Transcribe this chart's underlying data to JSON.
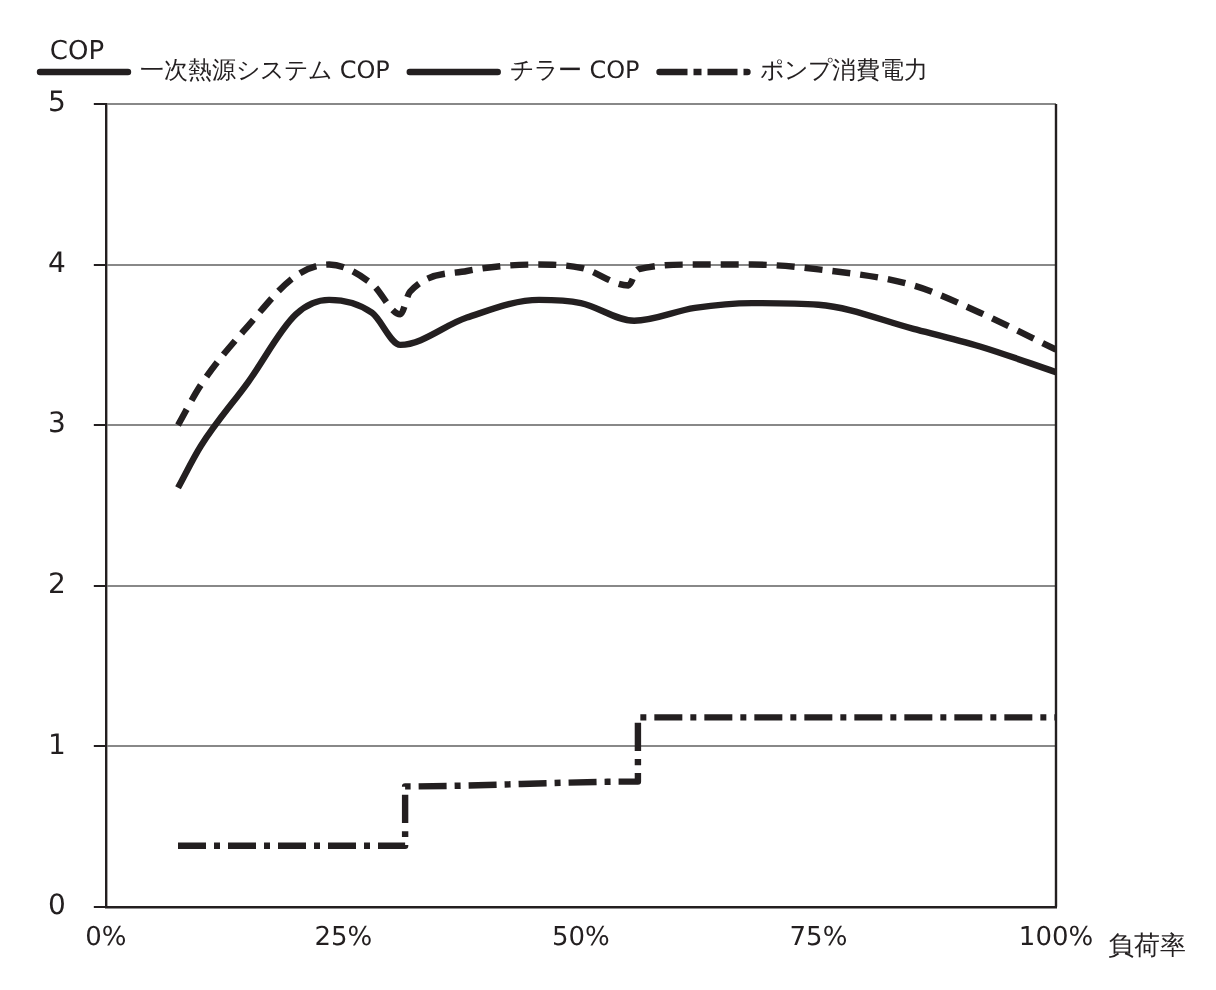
{
  "chart_data": {
    "type": "line",
    "xlabel": "負荷率",
    "ylabel": "COP",
    "xlim": [
      0,
      100
    ],
    "ylim": [
      0,
      5
    ],
    "xticks": [
      {
        "value": 0,
        "label": "0%"
      },
      {
        "value": 25,
        "label": "25%"
      },
      {
        "value": 50,
        "label": "50%"
      },
      {
        "value": 75,
        "label": "75%"
      },
      {
        "value": 100,
        "label": "100%"
      }
    ],
    "yticks": [
      0,
      1,
      2,
      3,
      4,
      5
    ],
    "grid": "y",
    "legend": "top",
    "marker": "none",
    "series": [
      {
        "name": "一次熱源システム COP",
        "color": "#231f20",
        "line_style": "solid",
        "x": [
          7.6,
          10,
          15,
          20,
          23.5,
          28,
          31,
          38,
          45.6,
          50,
          55.6,
          62,
          68,
          75,
          85,
          92,
          100
        ],
        "values": [
          2.61,
          2.87,
          3.27,
          3.69,
          3.78,
          3.7,
          3.5,
          3.67,
          3.78,
          3.76,
          3.65,
          3.73,
          3.76,
          3.75,
          3.6,
          3.49,
          3.33
        ]
      },
      {
        "name": "チラー COP",
        "color": "#231f20",
        "line_style": "dashed",
        "x": [
          7.6,
          10,
          15,
          20,
          23.5,
          28,
          31,
          32,
          38,
          45,
          50,
          55,
          56,
          62,
          68,
          75,
          85,
          92,
          100
        ],
        "values": [
          3.0,
          3.25,
          3.62,
          3.93,
          4.0,
          3.88,
          3.69,
          3.83,
          3.96,
          4.0,
          3.98,
          3.87,
          3.97,
          4.0,
          4.0,
          3.97,
          3.87,
          3.7,
          3.47
        ]
      },
      {
        "name": "ポンプ消費電力",
        "color": "#231f20",
        "line_style": "dashdot",
        "x": [
          7.6,
          31.5,
          31.5,
          56,
          56,
          100
        ],
        "values": [
          0.38,
          0.38,
          0.75,
          0.78,
          1.18,
          1.18
        ]
      }
    ]
  }
}
